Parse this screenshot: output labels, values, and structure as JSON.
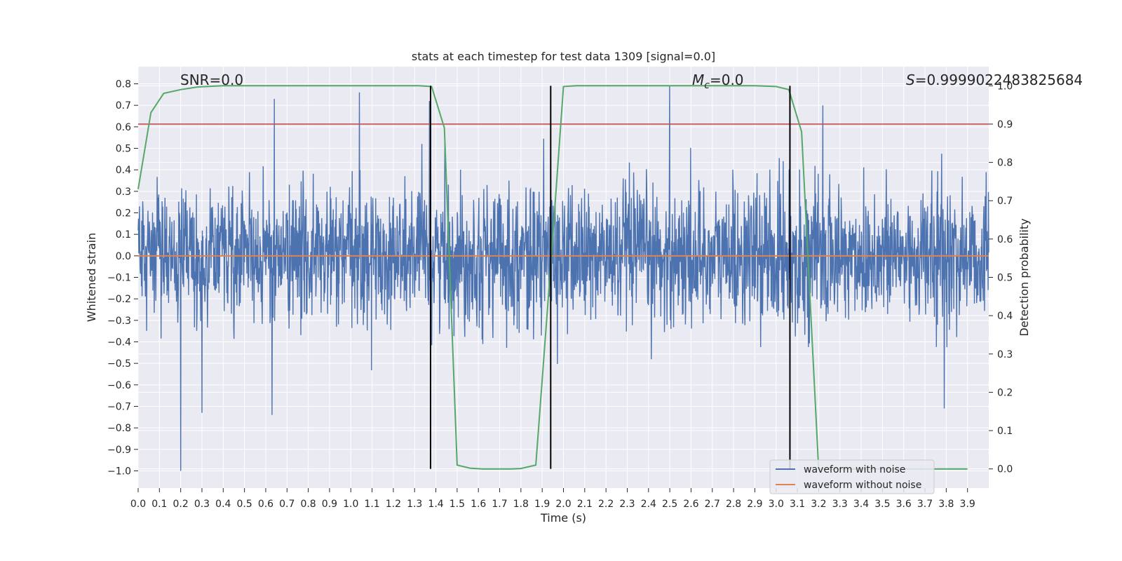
{
  "chart_data": {
    "type": "line",
    "title": "stats at each timestep for test data 1309 [signal=0.0]",
    "xlabel": "Time (s)",
    "ylabel": "Whitened strain",
    "y2label": "Detection probability",
    "xlim": [
      0.0,
      4.0
    ],
    "ylim": [
      -1.08,
      0.88
    ],
    "y2lim": [
      -0.05,
      1.05
    ],
    "xticks": [
      0.0,
      0.1,
      0.2,
      0.3,
      0.4,
      0.5,
      0.6,
      0.7,
      0.8,
      0.9,
      1.0,
      1.1,
      1.2,
      1.3,
      1.4,
      1.5,
      1.6,
      1.7,
      1.8,
      1.9,
      2.0,
      2.1,
      2.2,
      2.3,
      2.4,
      2.5,
      2.6,
      2.7,
      2.8,
      2.9,
      3.0,
      3.1,
      3.2,
      3.3,
      3.4,
      3.5,
      3.6,
      3.7,
      3.8,
      3.9
    ],
    "yticks": [
      0.8,
      0.7,
      0.6,
      0.5,
      0.4,
      0.3,
      0.2,
      0.1,
      0.0,
      -0.1,
      -0.2,
      -0.3,
      -0.4,
      -0.5,
      -0.6,
      -0.7,
      -0.8,
      -0.9,
      -1.0
    ],
    "y2ticks": [
      1.0,
      0.9,
      0.8,
      0.7,
      0.6,
      0.5,
      0.4,
      0.3,
      0.2,
      0.1,
      0.0
    ],
    "xtick_labels": [
      "0.0",
      "0.1",
      "0.2",
      "0.3",
      "0.4",
      "0.5",
      "0.6",
      "0.7",
      "0.8",
      "0.9",
      "1.0",
      "1.1",
      "1.2",
      "1.3",
      "1.4",
      "1.5",
      "1.6",
      "1.7",
      "1.8",
      "1.9",
      "2.0",
      "2.1",
      "2.2",
      "2.3",
      "2.4",
      "2.5",
      "2.6",
      "2.7",
      "2.8",
      "2.9",
      "3.0",
      "3.1",
      "3.2",
      "3.3",
      "3.4",
      "3.5",
      "3.6",
      "3.7",
      "3.8",
      "3.9"
    ],
    "ytick_labels": [
      "0.8",
      "0.7",
      "0.6",
      "0.5",
      "0.4",
      "0.3",
      "0.2",
      "0.1",
      "0.0",
      "−0.1",
      "−0.2",
      "−0.3",
      "−0.4",
      "−0.5",
      "−0.6",
      "−0.7",
      "−0.8",
      "−0.9",
      "−1.0"
    ],
    "y2tick_labels": [
      "1.0",
      "0.9",
      "0.8",
      "0.7",
      "0.6",
      "0.5",
      "0.4",
      "0.3",
      "0.2",
      "0.1",
      "0.0"
    ],
    "series": [
      {
        "name": "waveform with noise",
        "color": "#4c72b0",
        "axis": "left",
        "description": "dense noise trace, mostly within [-0.35, 0.3]",
        "peaks": [
          {
            "x": 0.2,
            "y": -1.0
          },
          {
            "x": 0.3,
            "y": -0.73
          },
          {
            "x": 0.63,
            "y": -0.74
          },
          {
            "x": 0.64,
            "y": 0.73
          },
          {
            "x": 1.04,
            "y": 0.76
          },
          {
            "x": 1.37,
            "y": 0.72
          },
          {
            "x": 2.5,
            "y": 0.79
          },
          {
            "x": 3.79,
            "y": -0.71
          },
          {
            "x": 3.22,
            "y": 0.7
          }
        ]
      },
      {
        "name": "waveform without noise",
        "color": "#dd8452",
        "axis": "left",
        "x": [
          0.0,
          4.0
        ],
        "y": [
          0.0,
          0.0
        ]
      },
      {
        "name": "detection probability",
        "color": "#55a868",
        "axis": "right",
        "x": [
          0.0,
          0.06,
          0.12,
          0.2,
          0.28,
          0.4,
          0.6,
          0.9,
          1.2,
          1.32,
          1.38,
          1.44,
          1.5,
          1.56,
          1.62,
          1.75,
          1.8,
          1.87,
          1.94,
          2.0,
          2.06,
          2.3,
          2.6,
          2.9,
          3.0,
          3.06,
          3.12,
          3.2,
          3.3,
          3.5,
          3.7,
          3.9
        ],
        "y": [
          0.73,
          0.93,
          0.98,
          0.99,
          0.997,
          1.0,
          1.0,
          1.0,
          1.0,
          1.0,
          0.998,
          0.89,
          0.01,
          0.002,
          0.0,
          0.0,
          0.001,
          0.01,
          0.53,
          0.998,
          1.0,
          1.0,
          1.0,
          1.0,
          0.998,
          0.99,
          0.88,
          0.0,
          0.0,
          0.0,
          0.0,
          0.0
        ]
      }
    ],
    "threshold": {
      "axis": "right",
      "value": 0.9,
      "color": "#c44e52"
    },
    "vlines": [
      {
        "x": 1.375,
        "color": "#000000"
      },
      {
        "x": 1.94,
        "color": "#000000"
      },
      {
        "x": 3.065,
        "color": "#000000"
      }
    ],
    "annotations": [
      {
        "id": "snr",
        "text": "SNR=0.0"
      },
      {
        "id": "mc",
        "prefix": "M",
        "sub": "c",
        "text": "=0.0"
      },
      {
        "id": "s",
        "prefix": "S",
        "text": "=0.9999022483825684"
      }
    ],
    "legend": {
      "placement": "lower-right",
      "entries": [
        "waveform with noise",
        "waveform without noise"
      ]
    },
    "grid": true,
    "background": "#eaeaf2"
  }
}
